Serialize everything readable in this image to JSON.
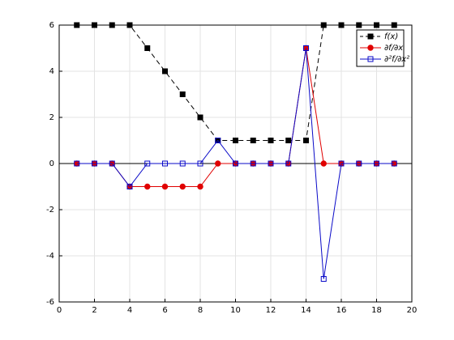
{
  "chart_data": {
    "type": "line",
    "x": [
      1,
      2,
      3,
      4,
      5,
      6,
      7,
      8,
      9,
      10,
      11,
      12,
      13,
      14,
      15,
      16,
      17,
      18,
      19
    ],
    "series": [
      {
        "name": "f(x)",
        "color": "#000000",
        "marker": "square",
        "filled": true,
        "dash": true,
        "values": [
          6,
          6,
          6,
          6,
          5,
          4,
          3,
          2,
          1,
          1,
          1,
          1,
          1,
          1,
          6,
          6,
          6,
          6,
          6
        ]
      },
      {
        "name": "∂f/∂x",
        "color": "#e00000",
        "marker": "circle",
        "filled": true,
        "dash": false,
        "values": [
          0,
          0,
          0,
          -1,
          -1,
          -1,
          -1,
          -1,
          0,
          0,
          0,
          0,
          0,
          5,
          0,
          0,
          0,
          0,
          0
        ]
      },
      {
        "name": "∂²f/∂x²",
        "color": "#0a0ac8",
        "marker": "square",
        "filled": false,
        "dash": false,
        "values": [
          0,
          0,
          0,
          -1,
          0,
          0,
          0,
          0,
          1,
          0,
          0,
          0,
          0,
          5,
          -5,
          0,
          0,
          0,
          0
        ]
      }
    ],
    "xlim": [
      0,
      20
    ],
    "xticks": [
      0,
      2,
      4,
      6,
      8,
      10,
      12,
      14,
      16,
      18,
      20
    ],
    "ylim": [
      -6,
      6
    ],
    "yticks": [
      -6,
      -4,
      -2,
      0,
      2,
      4,
      6
    ],
    "hline": 0,
    "grid": true,
    "legend": "top-right"
  }
}
